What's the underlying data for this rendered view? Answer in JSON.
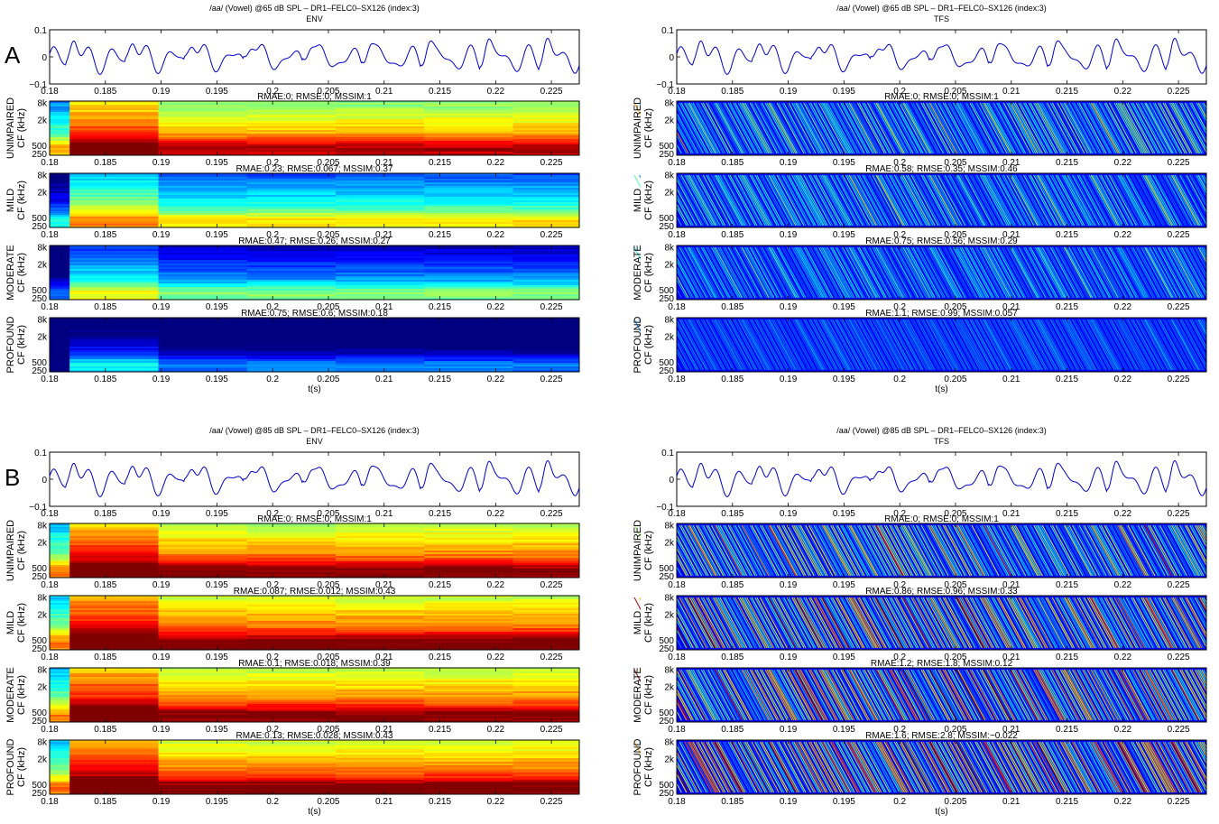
{
  "figure": {
    "panel_labels": [
      "A",
      "B"
    ],
    "severity_labels": [
      "UNIMPAIRED",
      "MILD",
      "MODERATE",
      "PROFOUND"
    ],
    "cf_label": "CF (kHz)",
    "time_label": "t(s)",
    "x_ticks": [
      "0.18",
      "0.185",
      "0.19",
      "0.195",
      "0.2",
      "0.205",
      "0.21",
      "0.215",
      "0.22",
      "0.225"
    ],
    "wave_y_ticks": [
      "0.1",
      "0",
      "−0.1"
    ],
    "cf_ticks": [
      "8k",
      "2k",
      "500",
      "250"
    ]
  },
  "chart_data": [
    {
      "type": "heatmap",
      "panel": "A",
      "title": "/aa/ (Vowel) @65 dB SPL – DR1–FELC0–SX126 (index:3)",
      "subtitle": "ENV",
      "mode": "env",
      "xlim": [
        0.18,
        0.2275
      ],
      "xlabel": "t(s)",
      "waveform_ylim": [
        -0.1,
        0.1
      ],
      "rows": [
        {
          "label": "UNIMPAIRED",
          "metrics": "RMAE:0; RMSE:0; MSSIM:1",
          "level": 0.85
        },
        {
          "label": "MILD",
          "metrics": "RMAE:0.23; RMSE:0.067; MSSIM:0.37",
          "level": 0.55
        },
        {
          "label": "MODERATE",
          "metrics": "RMAE:0.47; RMSE:0.26; MSSIM:0.27",
          "level": 0.4
        },
        {
          "label": "PROFOUND",
          "metrics": "RMAE:0.75; RMSE:0.6; MSSIM:0.18",
          "level": 0.15
        }
      ]
    },
    {
      "type": "heatmap",
      "panel": "A",
      "title": "/aa/ (Vowel) @65 dB SPL – DR1–FELC0–SX126 (index:3)",
      "subtitle": "TFS",
      "mode": "tfs",
      "xlim": [
        0.18,
        0.2275
      ],
      "xlabel": "t(s)",
      "waveform_ylim": [
        -0.1,
        0.1
      ],
      "rows": [
        {
          "label": "UNIMPAIRED",
          "metrics": "RMAE:0; RMSE:0; MSSIM:1",
          "level": 0.55
        },
        {
          "label": "MILD",
          "metrics": "RMAE:0.58; RMSE:0.35; MSSIM:0.46",
          "level": 0.45
        },
        {
          "label": "MODERATE",
          "metrics": "RMAE:0.75; RMSE:0.56; MSSIM:0.29",
          "level": 0.35
        },
        {
          "label": "PROFOUND",
          "metrics": "RMAE:1.1; RMSE:0.99; MSSIM:0.057",
          "level": 0.15
        }
      ]
    },
    {
      "type": "heatmap",
      "panel": "B",
      "title": "/aa/ (Vowel) @85 dB SPL – DR1–FELC0–SX126 (index:3)",
      "subtitle": "ENV",
      "mode": "env",
      "xlim": [
        0.18,
        0.2275
      ],
      "xlabel": "t(s)",
      "waveform_ylim": [
        -0.1,
        0.1
      ],
      "rows": [
        {
          "label": "UNIMPAIRED",
          "metrics": "RMAE:0; RMSE:0; MSSIM:1",
          "level": 0.9
        },
        {
          "label": "MILD",
          "metrics": "RMAE:0.087; RMSE:0.012; MSSIM:0.43",
          "level": 0.92
        },
        {
          "label": "MODERATE",
          "metrics": "RMAE:0.1; RMSE:0.018; MSSIM:0.39",
          "level": 0.9
        },
        {
          "label": "PROFOUND",
          "metrics": "RMAE:0.13; RMSE:0.028; MSSIM:0.43",
          "level": 0.92
        }
      ]
    },
    {
      "type": "heatmap",
      "panel": "B",
      "title": "/aa/ (Vowel) @85 dB SPL – DR1–FELC0–SX126 (index:3)",
      "subtitle": "TFS",
      "mode": "tfs",
      "xlim": [
        0.18,
        0.2275
      ],
      "xlabel": "t(s)",
      "waveform_ylim": [
        -0.1,
        0.1
      ],
      "rows": [
        {
          "label": "UNIMPAIRED",
          "metrics": "RMAE:0; RMSE:0; MSSIM:1",
          "level": 0.7
        },
        {
          "label": "MILD",
          "metrics": "RMAE:0.86; RMSE:0.96; MSSIM:0.33",
          "level": 0.9
        },
        {
          "label": "MODERATE",
          "metrics": "RMAE:1.2; RMSE:1.8; MSSIM:0.12",
          "level": 0.95
        },
        {
          "label": "PROFOUND",
          "metrics": "RMAE:1.6; RMSE:2.8; MSSIM:−0.022",
          "level": 1.0
        }
      ]
    }
  ]
}
